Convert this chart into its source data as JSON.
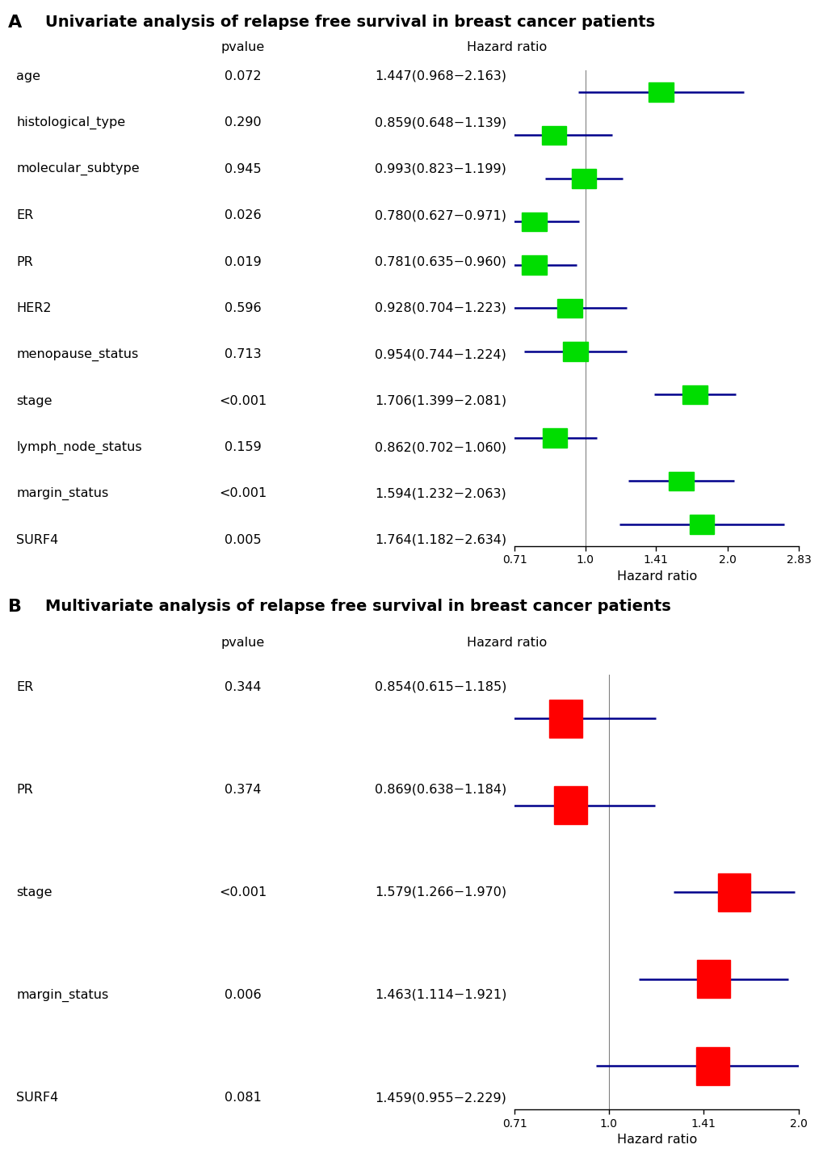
{
  "panel_A": {
    "title": "Univariate analysis of relapse free survival in breast cancer patients",
    "title_label": "A",
    "variables": [
      "age",
      "histological_type",
      "molecular_subtype",
      "ER",
      "PR",
      "HER2",
      "menopause_status",
      "stage",
      "lymph_node_status",
      "margin_status",
      "SURF4"
    ],
    "pvalues": [
      "0.072",
      "0.290",
      "0.945",
      "0.026",
      "0.019",
      "0.596",
      "0.713",
      "<0.001",
      "0.159",
      "<0.001",
      "0.005"
    ],
    "hr_labels": [
      "1.447(0.968−2.163)",
      "0.859(0.648−1.139)",
      "0.993(0.823−1.199)",
      "0.780(0.627−0.971)",
      "0.781(0.635−0.960)",
      "0.928(0.704−1.223)",
      "0.954(0.744−1.224)",
      "1.706(1.399−2.081)",
      "0.862(0.702−1.060)",
      "1.594(1.232−2.063)",
      "1.764(1.182−2.634)"
    ],
    "hr": [
      1.447,
      0.859,
      0.993,
      0.78,
      0.781,
      0.928,
      0.954,
      1.706,
      0.862,
      1.594,
      1.764
    ],
    "ci_low": [
      0.968,
      0.648,
      0.823,
      0.627,
      0.635,
      0.704,
      0.744,
      1.399,
      0.702,
      1.232,
      1.182
    ],
    "ci_high": [
      2.163,
      1.139,
      1.199,
      0.971,
      0.96,
      1.223,
      1.224,
      2.081,
      1.06,
      2.063,
      2.634
    ],
    "marker_color": "#00dd00",
    "line_color": "#00008B",
    "xmin": 0.71,
    "xmax": 2.83,
    "xticks": [
      0.71,
      1.0,
      1.41,
      2.0,
      2.83
    ],
    "xtick_labels": [
      "0.71",
      "1.0",
      "1.41",
      "2.0",
      "2.83"
    ],
    "xlabel": "Hazard ratio",
    "ref_line": 1.0
  },
  "panel_B": {
    "title": "Multivariate analysis of relapse free survival in breast cancer patients",
    "title_label": "B",
    "variables": [
      "ER",
      "PR",
      "stage",
      "margin_status",
      "SURF4"
    ],
    "pvalues": [
      "0.344",
      "0.374",
      "<0.001",
      "0.006",
      "0.081"
    ],
    "hr_labels": [
      "0.854(0.615−1.185)",
      "0.869(0.638−1.184)",
      "1.579(1.266−1.970)",
      "1.463(1.114−1.921)",
      "1.459(0.955−2.229)"
    ],
    "hr": [
      0.854,
      0.869,
      1.579,
      1.463,
      1.459
    ],
    "ci_low": [
      0.615,
      0.638,
      1.266,
      1.114,
      0.955
    ],
    "ci_high": [
      1.185,
      1.184,
      1.97,
      1.921,
      2.229
    ],
    "marker_color": "#ff0000",
    "line_color": "#00008B",
    "xmin": 0.71,
    "xmax": 2.0,
    "xticks": [
      0.71,
      1.0,
      1.41,
      2.0
    ],
    "xtick_labels": [
      "0.71",
      "1.0",
      "1.41",
      "2.0"
    ],
    "xlabel": "Hazard ratio",
    "ref_line": 1.0
  },
  "bg_color": "#ffffff",
  "text_color": "#000000",
  "title_fontsize": 14,
  "label_fontsize": 11.5,
  "tick_fontsize": 10
}
